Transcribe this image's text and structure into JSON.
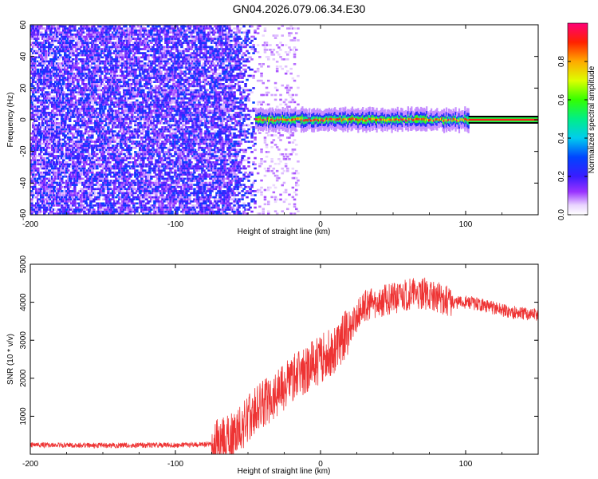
{
  "title": "GN04.2026.079.06.34.E30",
  "chart_data": [
    {
      "type": "heatmap",
      "xlabel": "Height of straight line (km)",
      "ylabel": "Frequency (Hz)",
      "xlim": [
        -200,
        150
      ],
      "ylim": [
        -60,
        60
      ],
      "x_ticks": [
        -200,
        -100,
        0,
        100
      ],
      "x_tick_labels": [
        "-200",
        "-100",
        "0",
        "100"
      ],
      "y_ticks": [
        -60,
        -40,
        -20,
        0,
        20,
        40,
        60
      ],
      "y_tick_labels": [
        "-60",
        "-40",
        "-20",
        "0",
        "20",
        "40",
        "60"
      ],
      "colorbar": {
        "label": "Normalized spectral amplitude",
        "range": [
          0,
          1
        ],
        "ticks": [
          0.0,
          0.2,
          0.4,
          0.6,
          0.8
        ],
        "tick_labels": [
          "0.0",
          "0.2",
          "0.4",
          "0.6",
          "0.8"
        ]
      },
      "features": {
        "noise_region_x": [
          -200,
          -45
        ],
        "noise_level": [
          0.05,
          0.3
        ],
        "signal_band_x": [
          -45,
          102
        ],
        "signal_band_center_hz": 0,
        "signal_band_halfwidth_hz": [
          2,
          5
        ],
        "signal_peak_level": [
          0.7,
          1.0
        ],
        "reference_line_x": [
          102,
          150
        ],
        "reference_line_halfwidth_hz": 1.5
      }
    },
    {
      "type": "line",
      "xlabel": "Height of straight line (km)",
      "ylabel": "SNR (10 * v/v)",
      "xlim": [
        -200,
        150
      ],
      "ylim": [
        0,
        5000
      ],
      "x_ticks": [
        -200,
        -100,
        0,
        100
      ],
      "x_tick_labels": [
        "-200",
        "-100",
        "0",
        "100"
      ],
      "y_ticks": [
        1000,
        2000,
        3000,
        4000,
        5000
      ],
      "y_tick_labels": [
        "1000",
        "2000",
        "3000",
        "4000",
        "5000"
      ],
      "series_color": "#ee3333",
      "x": [
        -200,
        -150,
        -100,
        -80,
        -70,
        -60,
        -50,
        -40,
        -30,
        -20,
        -10,
        0,
        10,
        20,
        30,
        40,
        50,
        60,
        70,
        80,
        90,
        100,
        110,
        120,
        130,
        140,
        150
      ],
      "values": [
        250,
        230,
        240,
        260,
        280,
        450,
        900,
        1300,
        1650,
        1950,
        2200,
        2500,
        2800,
        3300,
        3900,
        4000,
        4100,
        4200,
        4250,
        4150,
        4000,
        4000,
        3950,
        3850,
        3750,
        3700,
        3680
      ]
    }
  ]
}
